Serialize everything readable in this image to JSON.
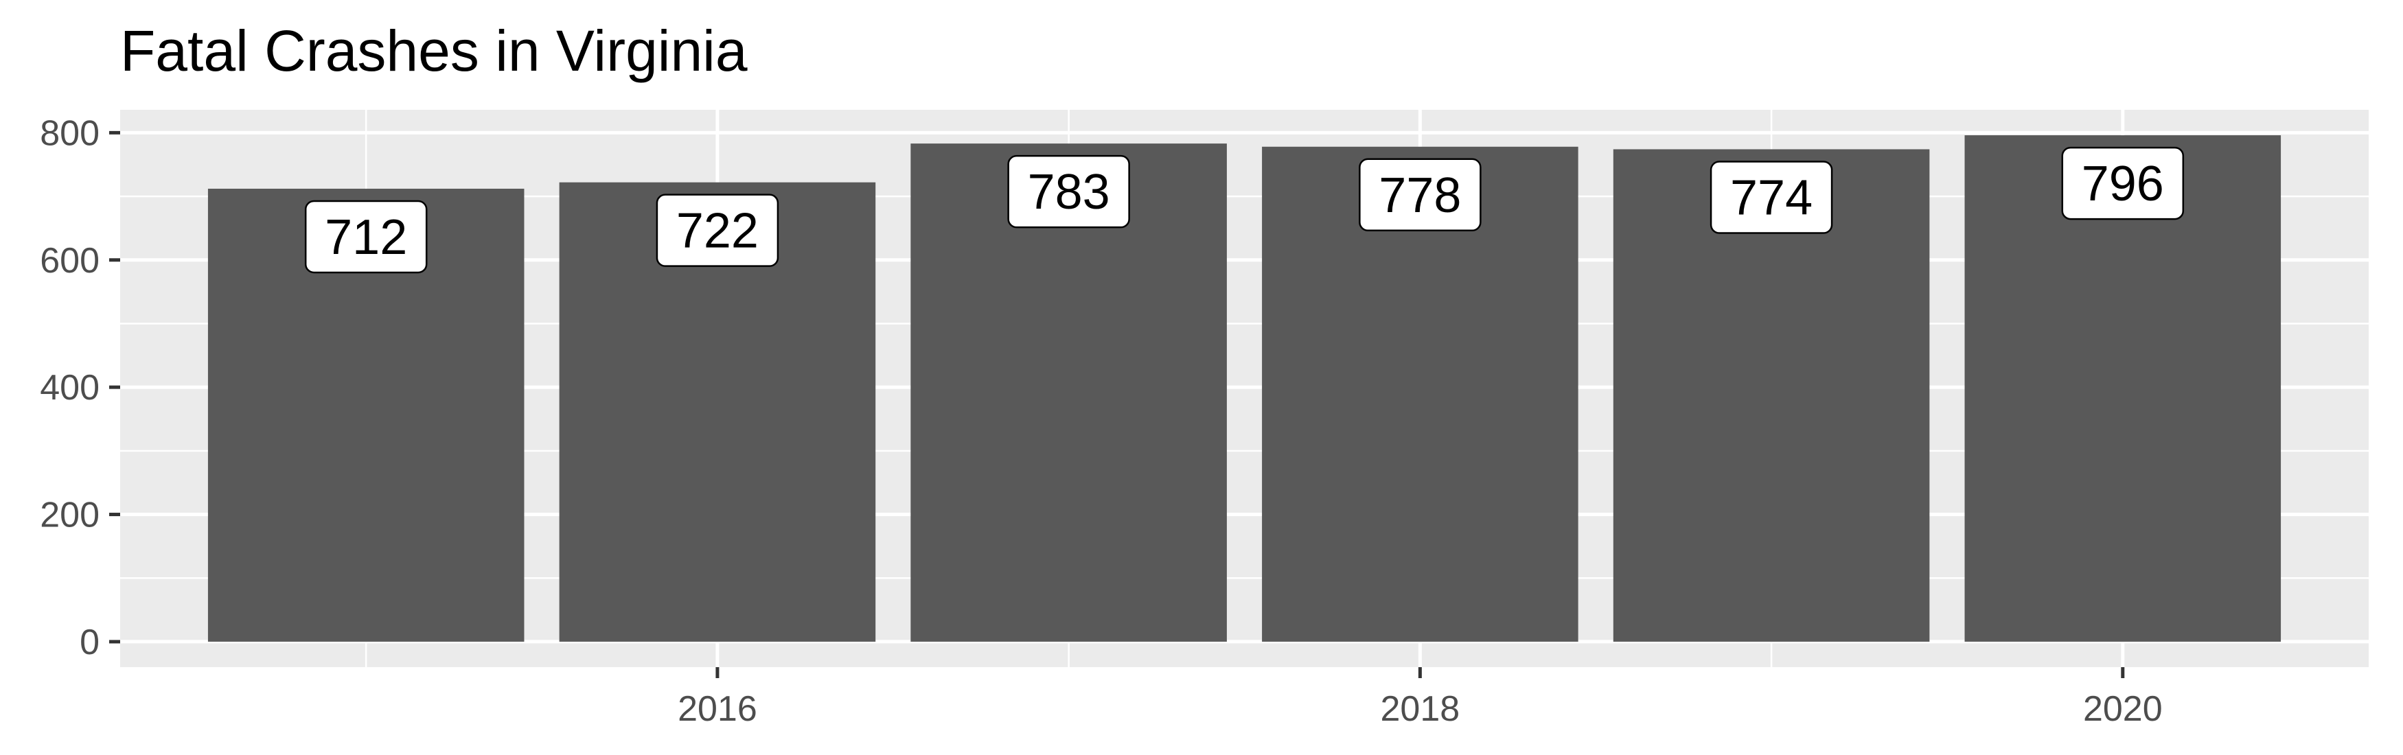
{
  "chart_data": {
    "type": "bar",
    "title": "Fatal Crashes in Virginia",
    "xlabel": "",
    "ylabel": "",
    "x": [
      2015,
      2016,
      2017,
      2018,
      2019,
      2020
    ],
    "values": [
      712,
      722,
      783,
      778,
      774,
      796
    ],
    "data_labels": [
      "712",
      "722",
      "783",
      "778",
      "774",
      "796"
    ],
    "xlim": [
      2014.3,
      2020.7
    ],
    "ylim": [
      -40,
      836
    ],
    "x_ticks": [
      2016,
      2018,
      2020
    ],
    "x_tick_labels": [
      "2016",
      "2018",
      "2020"
    ],
    "y_ticks": [
      0,
      200,
      400,
      600,
      800
    ],
    "y_tick_labels": [
      "0",
      "200",
      "400",
      "600",
      "800"
    ],
    "grid": true,
    "legend": "none",
    "colors": {
      "bar": "#595959",
      "panel": "#ebebeb",
      "grid": "#ffffff",
      "label_fill": "#ffffff",
      "label_border": "#000000"
    }
  }
}
